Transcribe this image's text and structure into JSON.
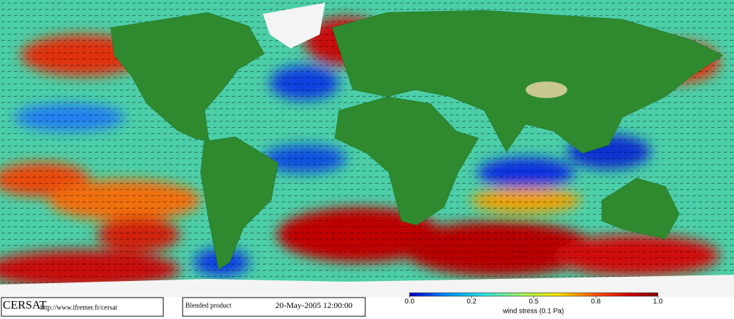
{
  "footer": {
    "logo": "CERSAT",
    "url": "http://www.ifremer.fr/cersat",
    "product": "Blended product",
    "date": "20-May-2005 12:00:00"
  },
  "colorbar": {
    "ticks": [
      {
        "value": 0,
        "label": "0.0"
      },
      {
        "value": 0.2,
        "label": "0.2"
      },
      {
        "value": 0.5,
        "label": "0.5"
      },
      {
        "value": 0.8,
        "label": "0.8"
      },
      {
        "value": 1,
        "label": "1.0"
      }
    ],
    "label": "wind stress (0.1 Pa)"
  }
}
